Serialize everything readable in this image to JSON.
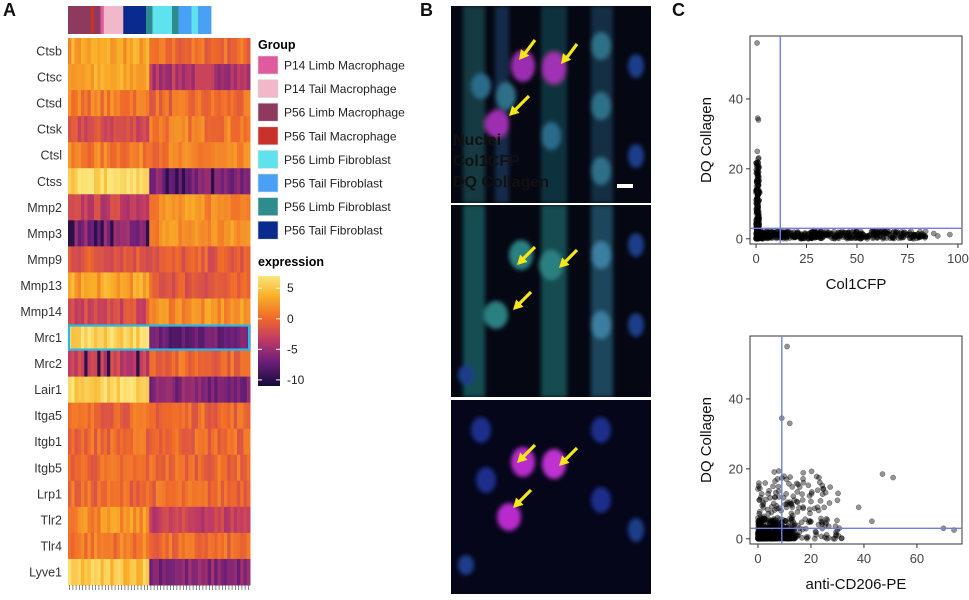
{
  "panels": {
    "a": "A",
    "b": "B",
    "c": "C"
  },
  "heatmap": {
    "genes": [
      "Ctsb",
      "Ctsc",
      "Ctsd",
      "Ctsk",
      "Ctsl",
      "Ctss",
      "Mmp2",
      "Mmp3",
      "Mmp9",
      "Mmp13",
      "Mmp14",
      "Mrc1",
      "Mrc2",
      "Lair1",
      "Itga5",
      "Itgb1",
      "Itgb5",
      "Lrp1",
      "Tlr2",
      "Tlr4",
      "Lyve1"
    ],
    "highlighted_gene": "Mrc1",
    "group_legend_title": "Group",
    "groups": [
      {
        "name": "P14 Limb Macrophage",
        "color": "#e05a9e"
      },
      {
        "name": "P14 Tail Macrophage",
        "color": "#f0b8c9"
      },
      {
        "name": "P56 Limb Macrophage",
        "color": "#8e3a5f"
      },
      {
        "name": "P56 Tail Macrophage",
        "color": "#c8322b"
      },
      {
        "name": "P56 Limb Fibroblast",
        "color": "#5ee3ee"
      },
      {
        "name": "P56 Tail Fibroblast",
        "color": "#4aa0f5"
      },
      {
        "name": "P56 Limb Fibroblast",
        "color": "#2e8c8e"
      },
      {
        "name": "P56 Tail Fibroblast",
        "color": "#0b2a8e"
      }
    ],
    "expression_legend_title": "expression",
    "expression_scale": {
      "ticks": [
        "5",
        "0",
        "-5",
        "-10"
      ],
      "max": 7,
      "min": -11
    }
  },
  "microscopy": {
    "labels": [
      {
        "text": "Nuclei",
        "color": "#1f7bff"
      },
      {
        "text": "Col1CFP",
        "color": "#3cd6d0"
      },
      {
        "text": "DQ Collagen",
        "color": "#e532d8"
      }
    ],
    "arrow_color": "#f5e61a",
    "scalebar_color": "#ffffff"
  },
  "scatter_top": {
    "xlabel": "Col1CFP",
    "ylabel": "DQ Collagen",
    "xticks": [
      "0",
      "25",
      "50",
      "75",
      "100"
    ],
    "yticks": [
      "0",
      "20",
      "40"
    ],
    "xlim": [
      -3,
      102
    ],
    "ylim": [
      -1.5,
      58
    ],
    "vline_x": 12,
    "hline_y": 3,
    "line_color": "#6f7fe0"
  },
  "scatter_bottom": {
    "xlabel": "anti-CD206-PE",
    "ylabel": "DQ Collagen",
    "xticks": [
      "0",
      "20",
      "40",
      "60"
    ],
    "yticks": [
      "0",
      "20",
      "40"
    ],
    "xlim": [
      -3,
      77
    ],
    "ylim": [
      -1.5,
      58
    ],
    "vline_x": 9,
    "hline_y": 3,
    "line_color": "#6f7fe0"
  }
}
